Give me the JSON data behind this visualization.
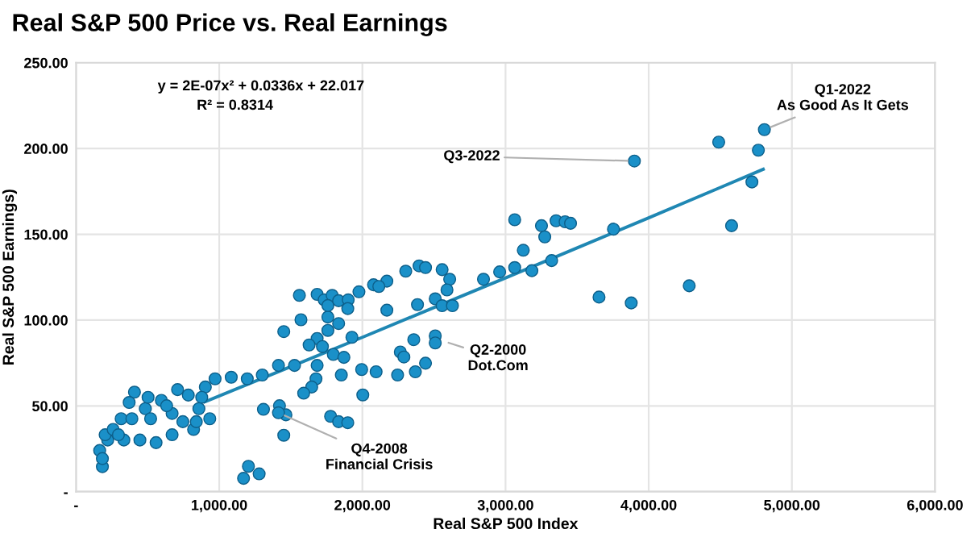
{
  "chart_data": {
    "type": "scatter",
    "title": "Real S&P 500 Price vs. Real Earnings",
    "xlabel": "Real S&P 500 Index",
    "ylabel": "Real S&P 500 Earnings)",
    "xlim": [
      0,
      6000
    ],
    "ylim": [
      0,
      250
    ],
    "xticks": [
      {
        "value": 0,
        "label": "-"
      },
      {
        "value": 1000,
        "label": "1,000.00"
      },
      {
        "value": 2000,
        "label": "2,000.00"
      },
      {
        "value": 3000,
        "label": "3,000.00"
      },
      {
        "value": 4000,
        "label": "4,000.00"
      },
      {
        "value": 5000,
        "label": "5,000.00"
      },
      {
        "value": 6000,
        "label": "6,000.00"
      }
    ],
    "yticks": [
      {
        "value": 0,
        "label": "-"
      },
      {
        "value": 50,
        "label": "50.00"
      },
      {
        "value": 100,
        "label": "100.00"
      },
      {
        "value": 150,
        "label": "150.00"
      },
      {
        "value": 200,
        "label": "200.00"
      },
      {
        "value": 250,
        "label": "250.00"
      }
    ],
    "grid": true,
    "marker": "circle",
    "series": [
      {
        "color": "#1a90c8",
        "x": [
          4489,
          4808,
          4766,
          4721,
          4579,
          3900,
          4283,
          3878,
          3653,
          3754,
          3322,
          3184,
          3064,
          2959,
          3124,
          3064,
          3251,
          3274,
          3353,
          3416,
          3454,
          2846,
          1560,
          1684,
          1733,
          1789,
          1834,
          1901,
          1976,
          2078,
          2171,
          2115,
          2303,
          2396,
          2441,
          2557,
          2610,
          2591,
          2509,
          2557,
          2629,
          2385,
          2171,
          1898,
          1759,
          1834,
          1759,
          1684,
          1721,
          1797,
          1871,
          1927,
          1628,
          1451,
          1571,
          1759,
          971,
          1084,
          1196,
          1301,
          1414,
          1526,
          1684,
          1676,
          1646,
          1590,
          1853,
          1995,
          2096,
          2003,
          2246,
          2265,
          2290,
          2359,
          2370,
          2441,
          2509,
          2509,
          1309,
          1421,
          1466,
          1414,
          1451,
          1778,
          1834,
          1898,
          1170,
          1204,
          1279,
          903,
          878,
          408,
          315,
          484,
          596,
          709,
          784,
          858,
          934,
          821,
          671,
          559,
          446,
          334,
          221,
          165,
          184,
          203,
          259,
          390,
          521,
          671,
          746,
          633,
          503,
          371,
          296,
          184,
          840
        ],
        "values": [
          203.7,
          211,
          199,
          180.5,
          155,
          192.7,
          120,
          110,
          113.4,
          153,
          134.7,
          128.8,
          130.6,
          128.1,
          140.7,
          158.5,
          155,
          148.5,
          157.9,
          157.3,
          156.4,
          123.8,
          114.4,
          115,
          111.8,
          114.4,
          111.3,
          111.8,
          116.5,
          120.6,
          122.7,
          119.6,
          128.5,
          131.6,
          130.6,
          129.4,
          123.8,
          117.6,
          112.4,
          108.4,
          108.4,
          109,
          105.8,
          106.7,
          101.8,
          98,
          94,
          89.3,
          84.6,
          80,
          78.3,
          90,
          85.5,
          93.3,
          100.2,
          108.5,
          65.8,
          66.7,
          65.8,
          68,
          73.6,
          73.6,
          73.6,
          65.8,
          61,
          57.4,
          68,
          71.2,
          69.9,
          56.4,
          68,
          81.4,
          78.5,
          88.6,
          69.9,
          74.9,
          90.8,
          86.7,
          48,
          50.1,
          44.8,
          46,
          32.9,
          43.9,
          40.8,
          40.2,
          7.8,
          14.8,
          10.4,
          61,
          55,
          58,
          42.5,
          48.4,
          53.2,
          59.5,
          56.3,
          48.4,
          42.5,
          36.3,
          33.2,
          28.6,
          30.1,
          30.1,
          30.1,
          24,
          14.6,
          33.2,
          36.3,
          42.5,
          42.5,
          45.6,
          40.8,
          50.1,
          55,
          52,
          33.2,
          19.3,
          40.8
        ]
      },
      {
        "type": "line",
        "color": "#1f87b3",
        "marker": "none",
        "x": [
          900,
          1500,
          2000,
          2500,
          3000,
          3500,
          4000,
          4500,
          4800
        ],
        "values": [
          52.4,
          72.9,
          90,
          107.3,
          124.6,
          142.1,
          159.6,
          177.3,
          187.9
        ]
      }
    ],
    "annotations": [
      "y = 2E-07x² + 0.0336x + 22.017",
      "R² = 0.8314",
      {
        "text": "Q1-2022\nAs Good As It Gets",
        "x": 4808,
        "y": 211
      },
      {
        "text": "Q3-2022",
        "x": 3900,
        "y": 192.7
      },
      {
        "text": "Q2-2000\nDot.Com",
        "x": 2557,
        "y": 88
      },
      {
        "text": "Q4-2008\nFinancial Crisis",
        "x": 1414,
        "y": 46
      }
    ]
  }
}
